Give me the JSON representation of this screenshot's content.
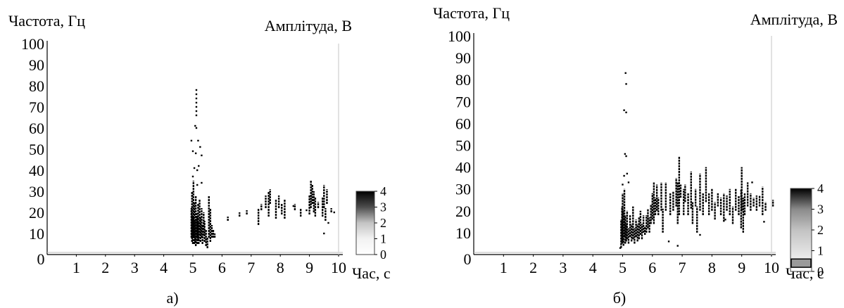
{
  "chart_data": [
    {
      "type": "scatter",
      "panel_label": "а)",
      "ylabel": "Частота, Гц",
      "xlabel": "Час, с",
      "colorbar_label": "Амплітуда, В",
      "xlim": [
        0,
        10
      ],
      "ylim": [
        0,
        100
      ],
      "xticks": [
        "0",
        "1",
        "2",
        "3",
        "4",
        "5",
        "6",
        "7",
        "8",
        "9",
        "10"
      ],
      "yticks": [
        "10",
        "20",
        "30",
        "40",
        "50",
        "60",
        "70",
        "80",
        "90",
        "100"
      ],
      "colorbar": {
        "ticks": [
          "0",
          "1",
          "2",
          "3",
          "4"
        ],
        "range": [
          0,
          4
        ],
        "stops": [
          {
            "v": 0,
            "color": "#ffffff"
          },
          {
            "v": 1,
            "color": "#f2f2f2"
          },
          {
            "v": 2,
            "color": "#c4c4c4"
          },
          {
            "v": 3,
            "color": "#4d4d4d"
          },
          {
            "v": 4,
            "color": "#000000"
          }
        ]
      },
      "segments": [
        {
          "x": 4.95,
          "y1": 8,
          "y2": 22
        },
        {
          "x": 4.97,
          "y1": 6,
          "y2": 30
        },
        {
          "x": 5.0,
          "y1": 5,
          "y2": 18
        },
        {
          "x": 5.02,
          "y1": 8,
          "y2": 35
        },
        {
          "x": 5.05,
          "y1": 5,
          "y2": 25
        },
        {
          "x": 5.08,
          "y1": 6,
          "y2": 16
        },
        {
          "x": 5.1,
          "y1": 4,
          "y2": 28
        },
        {
          "x": 5.13,
          "y1": 8,
          "y2": 20
        },
        {
          "x": 5.15,
          "y1": 5,
          "y2": 18
        },
        {
          "x": 5.18,
          "y1": 7,
          "y2": 24
        },
        {
          "x": 5.2,
          "y1": 5,
          "y2": 15
        },
        {
          "x": 5.23,
          "y1": 9,
          "y2": 26
        },
        {
          "x": 5.26,
          "y1": 6,
          "y2": 18
        },
        {
          "x": 5.3,
          "y1": 8,
          "y2": 22
        },
        {
          "x": 5.33,
          "y1": 5,
          "y2": 14
        },
        {
          "x": 5.37,
          "y1": 9,
          "y2": 20
        },
        {
          "x": 5.4,
          "y1": 6,
          "y2": 16
        },
        {
          "x": 5.45,
          "y1": 4,
          "y2": 12
        },
        {
          "x": 5.5,
          "y1": 3,
          "y2": 8
        },
        {
          "x": 5.55,
          "y1": 8,
          "y2": 28
        },
        {
          "x": 5.6,
          "y1": 6,
          "y2": 22
        },
        {
          "x": 5.65,
          "y1": 8,
          "y2": 14
        },
        {
          "x": 5.7,
          "y1": 8,
          "y2": 12
        },
        {
          "x": 5.75,
          "y1": 8,
          "y2": 10
        },
        {
          "x": 6.2,
          "y1": 16,
          "y2": 18
        },
        {
          "x": 6.6,
          "y1": 18,
          "y2": 20
        },
        {
          "x": 6.85,
          "y1": 19,
          "y2": 21
        },
        {
          "x": 7.25,
          "y1": 14,
          "y2": 22
        },
        {
          "x": 7.35,
          "y1": 21,
          "y2": 24
        },
        {
          "x": 7.5,
          "y1": 22,
          "y2": 28
        },
        {
          "x": 7.6,
          "y1": 18,
          "y2": 30
        },
        {
          "x": 7.65,
          "y1": 24,
          "y2": 31
        },
        {
          "x": 7.85,
          "y1": 17,
          "y2": 26
        },
        {
          "x": 7.95,
          "y1": 22,
          "y2": 28
        },
        {
          "x": 8.05,
          "y1": 19,
          "y2": 24
        },
        {
          "x": 8.15,
          "y1": 17,
          "y2": 26
        },
        {
          "x": 8.5,
          "y1": 21,
          "y2": 24
        },
        {
          "x": 8.7,
          "y1": 18,
          "y2": 22
        },
        {
          "x": 9.0,
          "y1": 19,
          "y2": 28
        },
        {
          "x": 9.05,
          "y1": 22,
          "y2": 35
        },
        {
          "x": 9.1,
          "y1": 24,
          "y2": 33
        },
        {
          "x": 9.15,
          "y1": 20,
          "y2": 30
        },
        {
          "x": 9.2,
          "y1": 18,
          "y2": 27
        },
        {
          "x": 9.3,
          "y1": 22,
          "y2": 25
        },
        {
          "x": 9.45,
          "y1": 18,
          "y2": 27
        },
        {
          "x": 9.5,
          "y1": 22,
          "y2": 33
        },
        {
          "x": 9.55,
          "y1": 16,
          "y2": 22
        },
        {
          "x": 9.6,
          "y1": 24,
          "y2": 31
        },
        {
          "x": 9.75,
          "y1": 20,
          "y2": 22
        }
      ],
      "points": [
        {
          "x": 5.08,
          "y": 61
        },
        {
          "x": 5.12,
          "y": 60
        },
        {
          "x": 5.18,
          "y": 54
        },
        {
          "x": 4.95,
          "y": 54
        },
        {
          "x": 5.25,
          "y": 51
        },
        {
          "x": 5.0,
          "y": 49
        },
        {
          "x": 5.1,
          "y": 48
        },
        {
          "x": 5.3,
          "y": 47
        },
        {
          "x": 5.2,
          "y": 42
        },
        {
          "x": 5.05,
          "y": 41
        },
        {
          "x": 5.15,
          "y": 40
        },
        {
          "x": 5.0,
          "y": 37
        },
        {
          "x": 5.3,
          "y": 34
        },
        {
          "x": 5.15,
          "y": 33
        },
        {
          "x": 5.12,
          "y": 78
        },
        {
          "x": 5.12,
          "y": 76
        },
        {
          "x": 5.12,
          "y": 74
        },
        {
          "x": 5.12,
          "y": 72
        },
        {
          "x": 5.12,
          "y": 70
        },
        {
          "x": 5.12,
          "y": 68
        },
        {
          "x": 5.12,
          "y": 66
        },
        {
          "x": 9.5,
          "y": 10
        },
        {
          "x": 9.65,
          "y": 15
        },
        {
          "x": 9.85,
          "y": 20
        },
        {
          "x": 8.45,
          "y": 23
        },
        {
          "x": 8.9,
          "y": 21
        }
      ]
    },
    {
      "type": "scatter",
      "panel_label": "б)",
      "ylabel": "Частота, Гц",
      "xlabel": "Час, с",
      "colorbar_label": "Амплітуда, В",
      "xlim": [
        0,
        10
      ],
      "ylim": [
        0,
        100
      ],
      "xticks": [
        "0",
        "1",
        "2",
        "3",
        "4",
        "5",
        "6",
        "7",
        "8",
        "9",
        "10"
      ],
      "yticks": [
        "10",
        "20",
        "30",
        "40",
        "50",
        "60",
        "70",
        "80",
        "90",
        "100"
      ],
      "colorbar": {
        "ticks": [
          "0",
          "1",
          "2",
          "3",
          "4"
        ],
        "range": [
          0,
          4
        ],
        "highlight_band": [
          0.2,
          0.6
        ],
        "stops": [
          {
            "v": 0,
            "color": "#ffffff"
          },
          {
            "v": 1,
            "color": "#e0e0e0"
          },
          {
            "v": 2,
            "color": "#c2c2c2"
          },
          {
            "v": 3,
            "color": "#8a8a8a"
          },
          {
            "v": 4,
            "color": "#000000"
          }
        ]
      },
      "segments": [
        {
          "x": 4.95,
          "y1": 3,
          "y2": 16
        },
        {
          "x": 4.98,
          "y1": 5,
          "y2": 22
        },
        {
          "x": 5.0,
          "y1": 6,
          "y2": 28
        },
        {
          "x": 5.03,
          "y1": 4,
          "y2": 20
        },
        {
          "x": 5.06,
          "y1": 8,
          "y2": 30
        },
        {
          "x": 5.09,
          "y1": 5,
          "y2": 18
        },
        {
          "x": 5.12,
          "y1": 6,
          "y2": 14
        },
        {
          "x": 5.15,
          "y1": 7,
          "y2": 20
        },
        {
          "x": 5.2,
          "y1": 5,
          "y2": 12
        },
        {
          "x": 5.25,
          "y1": 8,
          "y2": 18
        },
        {
          "x": 5.3,
          "y1": 6,
          "y2": 14
        },
        {
          "x": 5.35,
          "y1": 7,
          "y2": 22
        },
        {
          "x": 5.4,
          "y1": 5,
          "y2": 12
        },
        {
          "x": 5.45,
          "y1": 8,
          "y2": 16
        },
        {
          "x": 5.5,
          "y1": 6,
          "y2": 14
        },
        {
          "x": 5.55,
          "y1": 7,
          "y2": 17
        },
        {
          "x": 5.6,
          "y1": 9,
          "y2": 20
        },
        {
          "x": 5.65,
          "y1": 7,
          "y2": 14
        },
        {
          "x": 5.7,
          "y1": 10,
          "y2": 18
        },
        {
          "x": 5.75,
          "y1": 9,
          "y2": 13
        },
        {
          "x": 5.8,
          "y1": 10,
          "y2": 18
        },
        {
          "x": 5.85,
          "y1": 12,
          "y2": 21
        },
        {
          "x": 5.9,
          "y1": 10,
          "y2": 17
        },
        {
          "x": 5.95,
          "y1": 14,
          "y2": 23
        },
        {
          "x": 6.0,
          "y1": 16,
          "y2": 28
        },
        {
          "x": 6.05,
          "y1": 14,
          "y2": 33
        },
        {
          "x": 6.1,
          "y1": 18,
          "y2": 26
        },
        {
          "x": 6.15,
          "y1": 20,
          "y2": 32
        },
        {
          "x": 6.2,
          "y1": 18,
          "y2": 26
        },
        {
          "x": 6.3,
          "y1": 20,
          "y2": 33
        },
        {
          "x": 6.35,
          "y1": 10,
          "y2": 21
        },
        {
          "x": 6.45,
          "y1": 20,
          "y2": 33
        },
        {
          "x": 6.6,
          "y1": 18,
          "y2": 28
        },
        {
          "x": 6.7,
          "y1": 20,
          "y2": 29
        },
        {
          "x": 6.8,
          "y1": 22,
          "y2": 35
        },
        {
          "x": 6.85,
          "y1": 14,
          "y2": 33
        },
        {
          "x": 6.9,
          "y1": 18,
          "y2": 45
        },
        {
          "x": 6.95,
          "y1": 26,
          "y2": 32
        },
        {
          "x": 7.05,
          "y1": 18,
          "y2": 30
        },
        {
          "x": 7.1,
          "y1": 24,
          "y2": 32
        },
        {
          "x": 7.2,
          "y1": 18,
          "y2": 28
        },
        {
          "x": 7.3,
          "y1": 21,
          "y2": 38
        },
        {
          "x": 7.35,
          "y1": 14,
          "y2": 24
        },
        {
          "x": 7.45,
          "y1": 22,
          "y2": 30
        },
        {
          "x": 7.5,
          "y1": 10,
          "y2": 22
        },
        {
          "x": 7.6,
          "y1": 20,
          "y2": 37
        },
        {
          "x": 7.7,
          "y1": 18,
          "y2": 28
        },
        {
          "x": 7.8,
          "y1": 24,
          "y2": 40
        },
        {
          "x": 7.9,
          "y1": 18,
          "y2": 28
        },
        {
          "x": 8.0,
          "y1": 20,
          "y2": 30
        },
        {
          "x": 8.1,
          "y1": 16,
          "y2": 24
        },
        {
          "x": 8.2,
          "y1": 22,
          "y2": 28
        },
        {
          "x": 8.3,
          "y1": 18,
          "y2": 26
        },
        {
          "x": 8.4,
          "y1": 15,
          "y2": 28
        },
        {
          "x": 8.5,
          "y1": 20,
          "y2": 27
        },
        {
          "x": 8.6,
          "y1": 18,
          "y2": 30
        },
        {
          "x": 8.7,
          "y1": 14,
          "y2": 22
        },
        {
          "x": 8.8,
          "y1": 20,
          "y2": 30
        },
        {
          "x": 8.9,
          "y1": 18,
          "y2": 27
        },
        {
          "x": 8.98,
          "y1": 12,
          "y2": 30
        },
        {
          "x": 9.0,
          "y1": 20,
          "y2": 40
        },
        {
          "x": 9.05,
          "y1": 10,
          "y2": 26
        },
        {
          "x": 9.1,
          "y1": 18,
          "y2": 28
        },
        {
          "x": 9.2,
          "y1": 22,
          "y2": 33
        },
        {
          "x": 9.3,
          "y1": 20,
          "y2": 28
        },
        {
          "x": 9.4,
          "y1": 22,
          "y2": 26
        },
        {
          "x": 9.5,
          "y1": 20,
          "y2": 27
        },
        {
          "x": 9.6,
          "y1": 22,
          "y2": 27
        },
        {
          "x": 9.7,
          "y1": 18,
          "y2": 31
        },
        {
          "x": 9.8,
          "y1": 20,
          "y2": 24
        },
        {
          "x": 10.05,
          "y1": 22,
          "y2": 25
        }
      ],
      "points": [
        {
          "x": 5.1,
          "y": 83
        },
        {
          "x": 5.12,
          "y": 78
        },
        {
          "x": 5.05,
          "y": 66
        },
        {
          "x": 5.12,
          "y": 65
        },
        {
          "x": 5.08,
          "y": 46
        },
        {
          "x": 5.12,
          "y": 45
        },
        {
          "x": 5.15,
          "y": 37
        },
        {
          "x": 5.05,
          "y": 36
        },
        {
          "x": 4.92,
          "y": 3
        },
        {
          "x": 5.2,
          "y": 33
        },
        {
          "x": 5.0,
          "y": 32
        },
        {
          "x": 6.55,
          "y": 6
        },
        {
          "x": 6.85,
          "y": 4
        },
        {
          "x": 7.6,
          "y": 9
        },
        {
          "x": 8.45,
          "y": 16
        },
        {
          "x": 9.75,
          "y": 15
        },
        {
          "x": 9.35,
          "y": 33
        }
      ]
    }
  ]
}
